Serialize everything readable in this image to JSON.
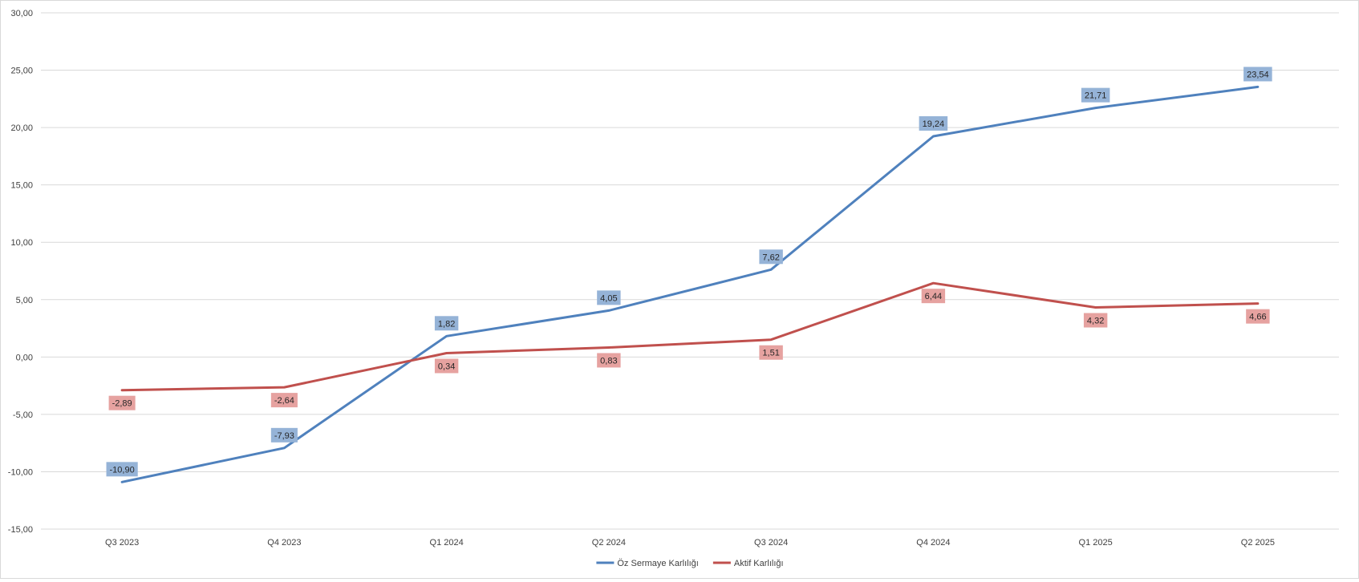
{
  "chart_data": {
    "type": "line",
    "title": "",
    "xlabel": "",
    "ylabel": "",
    "categories": [
      "Q3 2023",
      "Q4 2023",
      "Q1 2024",
      "Q2 2024",
      "Q3 2024",
      "Q4 2024",
      "Q1 2025",
      "Q2 2025"
    ],
    "ylim": [
      -15,
      30
    ],
    "yticks": [
      -15,
      -10,
      -5,
      0,
      5,
      10,
      15,
      20,
      25,
      30
    ],
    "ytick_labels": [
      "-15,00",
      "-10,00",
      "-5,00",
      "0,00",
      "5,00",
      "10,00",
      "15,00",
      "20,00",
      "25,00",
      "30,00"
    ],
    "grid": true,
    "legend_position": "bottom",
    "series": [
      {
        "name": "Öz Sermaye Karlılığı",
        "color": "#4f81bd",
        "label_bg": "#95b3d7",
        "values": [
          -10.9,
          -7.93,
          1.82,
          4.05,
          7.62,
          19.24,
          21.71,
          23.54
        ],
        "labels": [
          "-10,90",
          "-7,93",
          "1,82",
          "4,05",
          "7,62",
          "19,24",
          "21,71",
          "23,54"
        ],
        "label_position": "above"
      },
      {
        "name": "Aktif Karlılığı",
        "color": "#c0504d",
        "label_bg": "#e6a2a0",
        "values": [
          -2.89,
          -2.64,
          0.34,
          0.83,
          1.51,
          6.44,
          4.32,
          4.66
        ],
        "labels": [
          "-2,89",
          "-2,64",
          "0,34",
          "0,83",
          "1,51",
          "6,44",
          "4,32",
          "4,66"
        ],
        "label_position": "below"
      }
    ]
  }
}
